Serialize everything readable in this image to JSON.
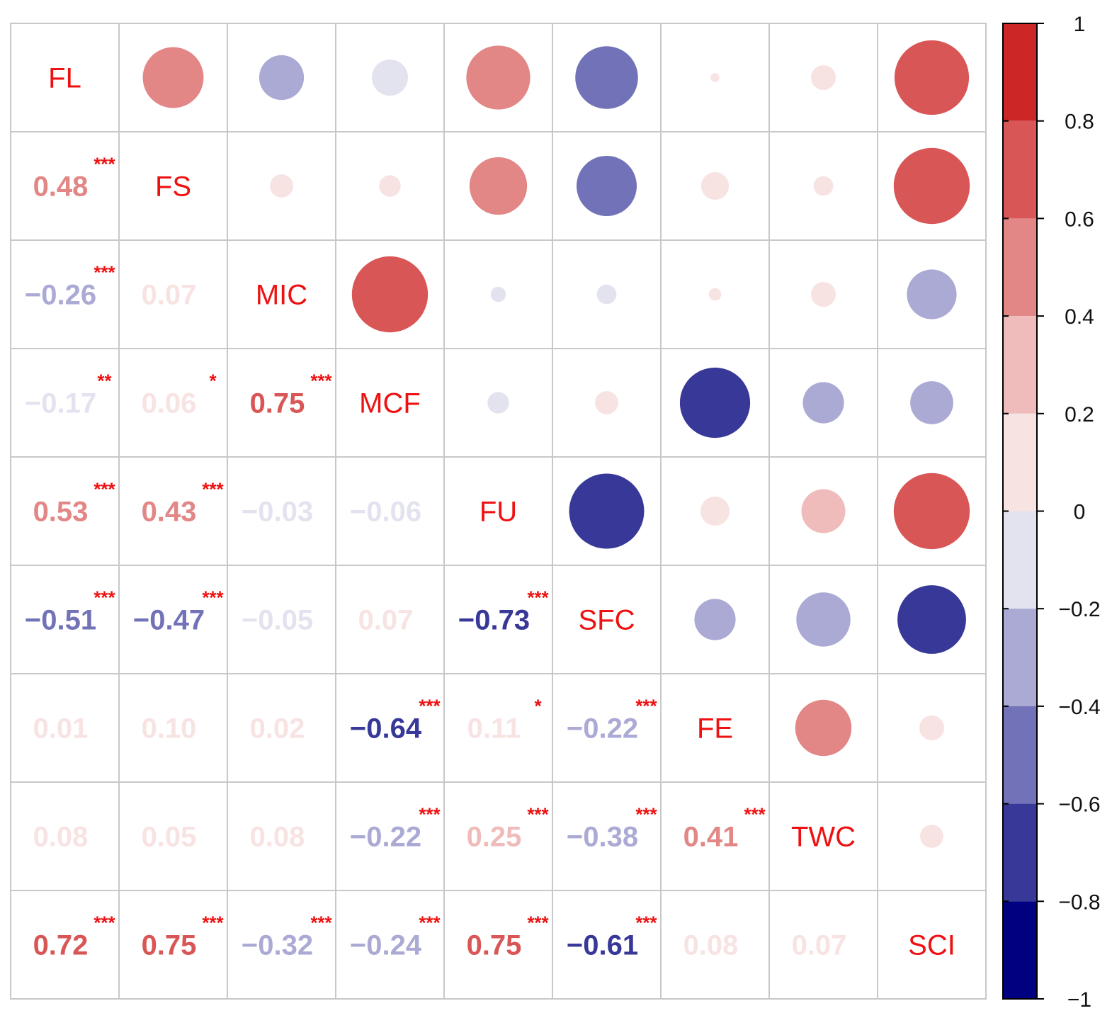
{
  "chart_data": {
    "type": "heatmap",
    "style": "correlation-matrix",
    "variables": [
      "FL",
      "FS",
      "MIC",
      "MCF",
      "FU",
      "SFC",
      "FE",
      "TWC",
      "SCI"
    ],
    "lower_triangle_labels": [
      [
        "",
        "",
        "",
        "",
        "",
        "",
        "",
        "",
        ""
      ],
      [
        "0.48",
        "",
        "",
        "",
        "",
        "",
        "",
        "",
        ""
      ],
      [
        "−0.26",
        "0.07",
        "",
        "",
        "",
        "",
        "",
        "",
        ""
      ],
      [
        "−0.17",
        "0.06",
        "0.75",
        "",
        "",
        "",
        "",
        "",
        ""
      ],
      [
        "0.53",
        "0.43",
        "−0.03",
        "−0.06",
        "",
        "",
        "",
        "",
        ""
      ],
      [
        "−0.51",
        "−0.47",
        "−0.05",
        "0.07",
        "−0.73",
        "",
        "",
        "",
        ""
      ],
      [
        "0.01",
        "0.10",
        "0.02",
        "−0.64",
        "0.11",
        "−0.22",
        "",
        "",
        ""
      ],
      [
        "0.08",
        "0.05",
        "0.08",
        "−0.22",
        "0.25",
        "−0.38",
        "0.41",
        "",
        ""
      ],
      [
        "0.72",
        "0.75",
        "−0.32",
        "−0.24",
        "0.75",
        "−0.61",
        "0.08",
        "0.07",
        ""
      ]
    ],
    "correlation": [
      [
        1,
        0.48,
        -0.26,
        -0.17,
        0.53,
        -0.51,
        0.01,
        0.08,
        0.72
      ],
      [
        0.48,
        1,
        0.07,
        0.06,
        0.43,
        -0.47,
        0.1,
        0.05,
        0.75
      ],
      [
        -0.26,
        0.07,
        1,
        0.75,
        -0.03,
        -0.05,
        0.02,
        0.08,
        -0.32
      ],
      [
        -0.17,
        0.06,
        0.75,
        1,
        -0.06,
        0.07,
        -0.64,
        -0.22,
        -0.24
      ],
      [
        0.53,
        0.43,
        -0.03,
        -0.06,
        1,
        -0.73,
        0.11,
        0.25,
        0.75
      ],
      [
        -0.51,
        -0.47,
        -0.05,
        0.07,
        -0.73,
        1,
        -0.22,
        -0.38,
        -0.61
      ],
      [
        0.01,
        0.1,
        0.02,
        -0.64,
        0.11,
        -0.22,
        1,
        0.41,
        0.08
      ],
      [
        0.08,
        0.05,
        0.08,
        -0.22,
        0.25,
        -0.38,
        0.41,
        1,
        0.07
      ],
      [
        0.72,
        0.75,
        -0.32,
        -0.24,
        0.75,
        -0.61,
        0.08,
        0.07,
        1
      ]
    ],
    "significance": [
      [
        "",
        "",
        "",
        "",
        "",
        "",
        "",
        "",
        ""
      ],
      [
        "***",
        "",
        "",
        "",
        "",
        "",
        "",
        "",
        ""
      ],
      [
        "***",
        "",
        "",
        "",
        "",
        "",
        "",
        "",
        ""
      ],
      [
        "**",
        "*",
        "***",
        "",
        "",
        "",
        "",
        "",
        ""
      ],
      [
        "***",
        "***",
        "",
        "",
        "",
        "",
        "",
        "",
        ""
      ],
      [
        "***",
        "***",
        "",
        "",
        "***",
        "",
        "",
        "",
        ""
      ],
      [
        "",
        "",
        "",
        "***",
        "*",
        "***",
        "",
        "",
        ""
      ],
      [
        "",
        "",
        "",
        "***",
        "***",
        "***",
        "***",
        "",
        ""
      ],
      [
        "***",
        "***",
        "***",
        "***",
        "***",
        "***",
        "",
        "",
        ""
      ]
    ],
    "upper_triangle": "circles",
    "lower_triangle": "numbers",
    "diagonal": "variable names",
    "colorbar": {
      "range": [
        -1,
        1
      ],
      "ticks": [
        "1",
        "0.8",
        "0.6",
        "0.4",
        "0.2",
        "0",
        "−0.2",
        "−0.4",
        "−0.6",
        "−0.8",
        "−1"
      ],
      "tick_values": [
        1,
        0.8,
        0.6,
        0.4,
        0.2,
        0,
        -0.2,
        -0.4,
        -0.6,
        -0.8,
        -1
      ],
      "bins": [
        {
          "from": 0.8,
          "to": 1.0,
          "color": "#cc2626"
        },
        {
          "from": 0.6,
          "to": 0.8,
          "color": "#d95656"
        },
        {
          "from": 0.4,
          "to": 0.6,
          "color": "#e28686"
        },
        {
          "from": 0.2,
          "to": 0.4,
          "color": "#efbbbb"
        },
        {
          "from": 0.0,
          "to": 0.2,
          "color": "#f8e3e3"
        },
        {
          "from": -0.2,
          "to": 0.0,
          "color": "#e3e3f0"
        },
        {
          "from": -0.4,
          "to": -0.2,
          "color": "#aaaad5"
        },
        {
          "from": -0.6,
          "to": -0.4,
          "color": "#7272b8"
        },
        {
          "from": -0.8,
          "to": -0.6,
          "color": "#383899"
        },
        {
          "from": -1.0,
          "to": -0.8,
          "color": "#000080"
        }
      ]
    },
    "title": "",
    "xlabel": "",
    "ylabel": ""
  },
  "colors": {
    "variable_label": "#ee1111",
    "significance_star": "#ee1111",
    "grid": "#c8c8c8"
  }
}
